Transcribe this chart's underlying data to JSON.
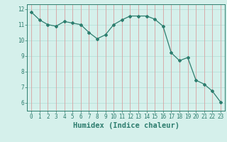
{
  "x": [
    0,
    1,
    2,
    3,
    4,
    5,
    6,
    7,
    8,
    9,
    10,
    11,
    12,
    13,
    14,
    15,
    16,
    17,
    18,
    19,
    20,
    21,
    22,
    23
  ],
  "y": [
    11.8,
    11.3,
    11.0,
    10.9,
    11.2,
    11.1,
    11.0,
    10.5,
    10.1,
    10.35,
    11.0,
    11.3,
    11.55,
    11.55,
    11.55,
    11.35,
    10.9,
    9.2,
    8.7,
    8.9,
    7.45,
    7.2,
    6.75,
    6.05
  ],
  "line_color": "#2d7d6e",
  "marker": "D",
  "marker_size": 2,
  "background_color": "#d5f0eb",
  "grid_color_x": "#d8a0a0",
  "grid_color_y": "#b8e0da",
  "xlabel": "Humidex (Indice chaleur)",
  "xlim": [
    -0.5,
    23.5
  ],
  "ylim": [
    5.5,
    12.3
  ],
  "yticks": [
    6,
    7,
    8,
    9,
    10,
    11,
    12
  ],
  "xticks": [
    0,
    1,
    2,
    3,
    4,
    5,
    6,
    7,
    8,
    9,
    10,
    11,
    12,
    13,
    14,
    15,
    16,
    17,
    18,
    19,
    20,
    21,
    22,
    23
  ],
  "axis_color": "#2d7d6e",
  "tick_label_fontsize": 5.5,
  "xlabel_fontsize": 7.5
}
